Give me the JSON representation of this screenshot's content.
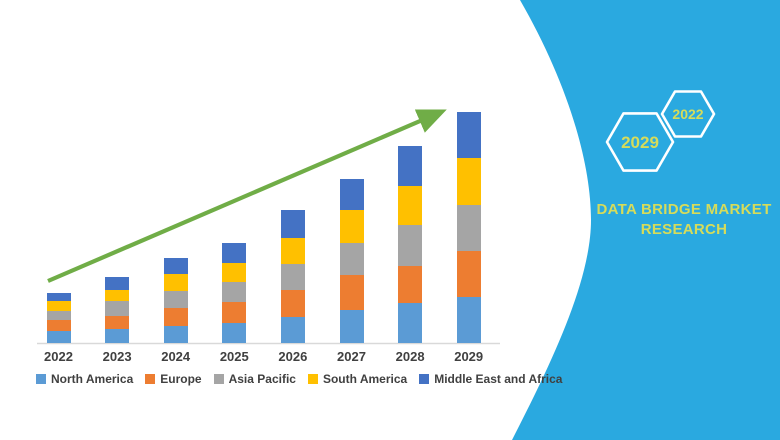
{
  "brand_panel": {
    "background_color": "#2AA9E0",
    "text_color": "#D6DC5A",
    "hexagon_large_label": "2029",
    "hexagon_small_label": "2022",
    "title_line1": "DATA BRIDGE MARKET",
    "title_line2": "RESEARCH"
  },
  "chart_data": {
    "type": "bar",
    "stacked": true,
    "title": "",
    "xlabel": "",
    "ylabel": "",
    "value_axis_visible": false,
    "gridlines": false,
    "legend_position": "bottom",
    "trend_arrow_color": "#70AD47",
    "axis_line_color": "#D9D9D9",
    "label_color": "#404040",
    "categories": [
      "2022",
      "2023",
      "2024",
      "2025",
      "2026",
      "2027",
      "2028",
      "2029"
    ],
    "series": [
      {
        "name": "North America",
        "color": "#5B9BD5",
        "values": [
          12,
          14,
          17,
          20,
          26,
          33,
          40,
          46
        ]
      },
      {
        "name": "Europe",
        "color": "#ED7D31",
        "values": [
          11,
          13,
          18,
          21,
          27,
          35,
          37,
          46
        ]
      },
      {
        "name": "Asia Pacific",
        "color": "#A5A5A5",
        "values": [
          9,
          15,
          17,
          20,
          26,
          32,
          41,
          46
        ]
      },
      {
        "name": "South America",
        "color": "#FFC000",
        "values": [
          10,
          11,
          17,
          19,
          26,
          33,
          39,
          47
        ]
      },
      {
        "name": "Middle East and Africa",
        "color": "#4472C4",
        "values": [
          8,
          13,
          16,
          20,
          28,
          31,
          40,
          46
        ]
      }
    ]
  }
}
